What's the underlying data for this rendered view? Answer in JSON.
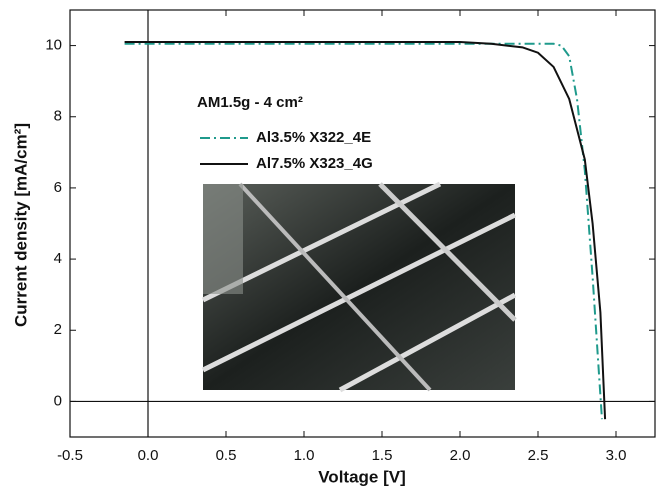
{
  "chart_data": {
    "type": "line",
    "x_label": "Voltage [V]",
    "y_label": "Current density [mA/cm²]",
    "legend_title": "AM1.5g - 4 cm²",
    "xlim": [
      -0.5,
      3.25
    ],
    "ylim": [
      -1,
      11
    ],
    "xticks": [
      -0.5,
      {
        "value": 0,
        "label": "0.0"
      },
      0.5,
      {
        "value": 1,
        "label": "1.0"
      },
      1.5,
      {
        "value": 2,
        "label": "2.0"
      },
      2.5,
      {
        "value": 3,
        "label": "3.0"
      }
    ],
    "yticks": [
      0,
      2,
      4,
      6,
      8,
      10
    ],
    "series": [
      {
        "name": "Al3.5% X322_4E",
        "color": "#1f9a8c",
        "dash": "dashdot",
        "x": [
          -0.15,
          0.5,
          1.0,
          1.5,
          2.0,
          2.4,
          2.6,
          2.65,
          2.7,
          2.75,
          2.8,
          2.85,
          2.88,
          2.91
        ],
        "values": [
          10.05,
          10.05,
          10.05,
          10.05,
          10.05,
          10.05,
          10.05,
          10.0,
          9.7,
          8.5,
          6.5,
          3.5,
          1.5,
          -0.5
        ]
      },
      {
        "name": "Al7.5% X323_4G",
        "color": "#111111",
        "dash": "solid",
        "x": [
          -0.15,
          0.5,
          1.0,
          1.5,
          2.0,
          2.2,
          2.4,
          2.5,
          2.6,
          2.7,
          2.8,
          2.85,
          2.9,
          2.93
        ],
        "values": [
          10.1,
          10.1,
          10.1,
          10.1,
          10.1,
          10.05,
          9.95,
          9.8,
          9.4,
          8.5,
          6.8,
          5.0,
          2.5,
          -0.5
        ]
      }
    ]
  }
}
